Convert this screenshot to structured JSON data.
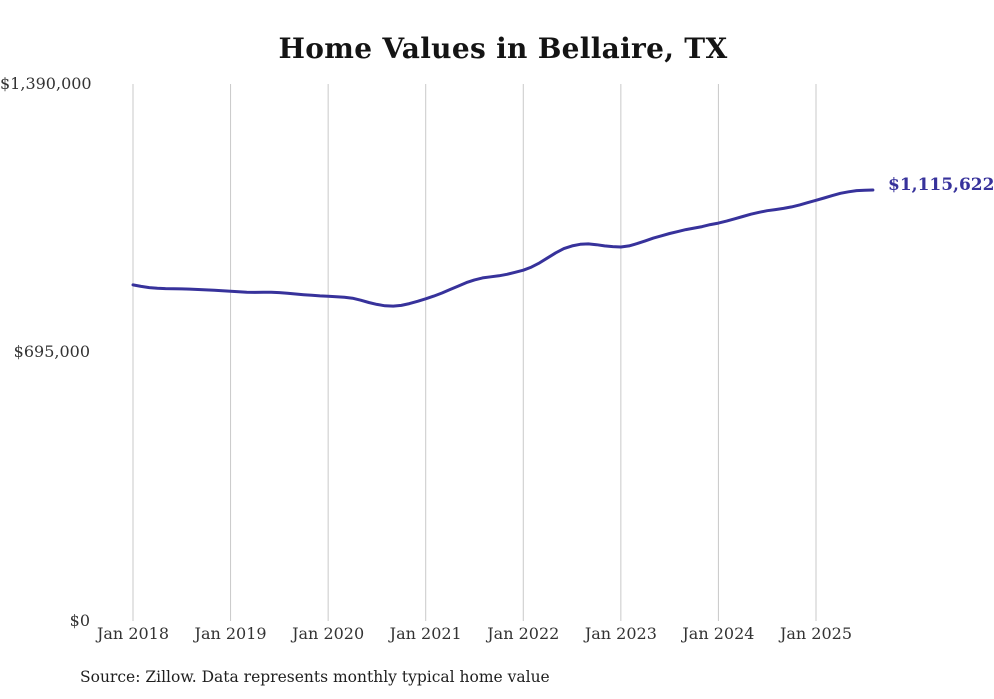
{
  "page": {
    "title": "Home Values in Bellaire, TX"
  },
  "chart_data": {
    "type": "line",
    "title": "Home Values in Bellaire, TX",
    "xlabel": "",
    "ylabel": "",
    "ylim": [
      0,
      1390000
    ],
    "grid": "vertical-only",
    "legend": "none",
    "x_start_month": "Jan 2018",
    "x_end_month": "Aug 2025",
    "x_tick_labels": [
      "Jan 2018",
      "Jan 2019",
      "Jan 2020",
      "Jan 2021",
      "Jan 2022",
      "Jan 2023",
      "Jan 2024",
      "Jan 2025"
    ],
    "y_ticks": [
      {
        "value": 1390000,
        "label": "$1,390,000"
      },
      {
        "value": 695000,
        "label": "$695,000"
      },
      {
        "value": 0,
        "label": "$0"
      }
    ],
    "series": [
      {
        "name": "Monthly typical home value",
        "values": [
          870000,
          866000,
          863000,
          861500,
          860500,
          860000,
          859500,
          859000,
          858000,
          857000,
          856000,
          855000,
          853500,
          852000,
          851000,
          850500,
          851000,
          851000,
          850000,
          848500,
          846500,
          844500,
          843000,
          841500,
          840500,
          839500,
          838000,
          835500,
          830500,
          824500,
          819500,
          816000,
          815000,
          817000,
          821500,
          827500,
          834000,
          841000,
          849000,
          858000,
          867000,
          876000,
          883000,
          888000,
          891000,
          893500,
          897500,
          902500,
          908000,
          916000,
          927000,
          940000,
          953000,
          964000,
          971000,
          975000,
          976000,
          974000,
          971000,
          969000,
          968000,
          971000,
          977000,
          984000,
          991000,
          997000,
          1003000,
          1008000,
          1013000,
          1017000,
          1021000,
          1026000,
          1030000,
          1035000,
          1041000,
          1047000,
          1053000,
          1058000,
          1062000,
          1065000,
          1068000,
          1072000,
          1077000,
          1083000,
          1089000,
          1095000,
          1101000,
          1107000,
          1111000,
          1114000,
          1115000,
          1115622
        ]
      }
    ],
    "latest_value": 1115622,
    "latest_value_label": "$1,115,622",
    "line_color": "#37329b",
    "grid_color": "#c9c9c9"
  },
  "footer": {
    "source_note": "Source: Zillow. Data represents monthly typical home value"
  }
}
